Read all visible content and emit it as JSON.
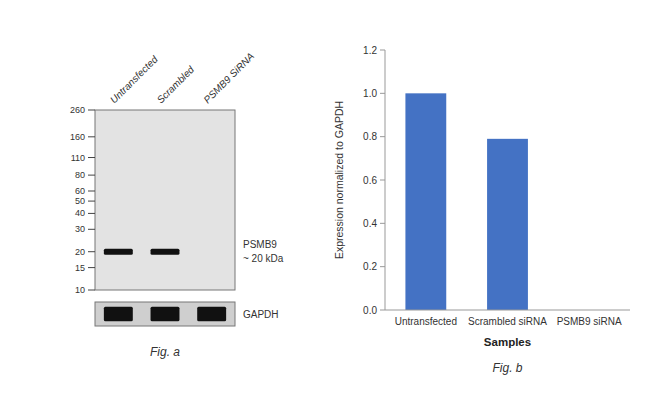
{
  "chart_data": [
    {
      "type": "western_blot",
      "categories": [
        "Untransfected",
        "Scrambled",
        "PSMB9 SiRNA"
      ],
      "log": "y",
      "ylim": [
        10,
        260
      ],
      "yticks": [
        260,
        160,
        110,
        80,
        60,
        50,
        40,
        30,
        20,
        15,
        10
      ],
      "series": [
        {
          "name": "PSMB9",
          "color": "#111111",
          "values": [
            20,
            20,
            null
          ]
        }
      ],
      "annotations": [
        "~ 20 kDa",
        "GAPDH",
        "Fig. a"
      ]
    },
    {
      "type": "bar",
      "categories": [
        "Untransfected",
        "Scrambled siRNA",
        "PSMB9 siRNA"
      ],
      "values": [
        1.0,
        0.79,
        0.0
      ],
      "color": "#4472c4",
      "ylim": [
        0,
        1.2
      ],
      "yticks": [
        {
          "value": 0,
          "label": "0.0"
        },
        0.2,
        0.4,
        0.6,
        0.8,
        {
          "value": 1,
          "label": "1.0"
        },
        1.2
      ],
      "ylabel": "Expression normalized to GAPDH",
      "xlabel": "Samples",
      "grid": false,
      "annotations": [
        "Fig. b"
      ]
    }
  ]
}
